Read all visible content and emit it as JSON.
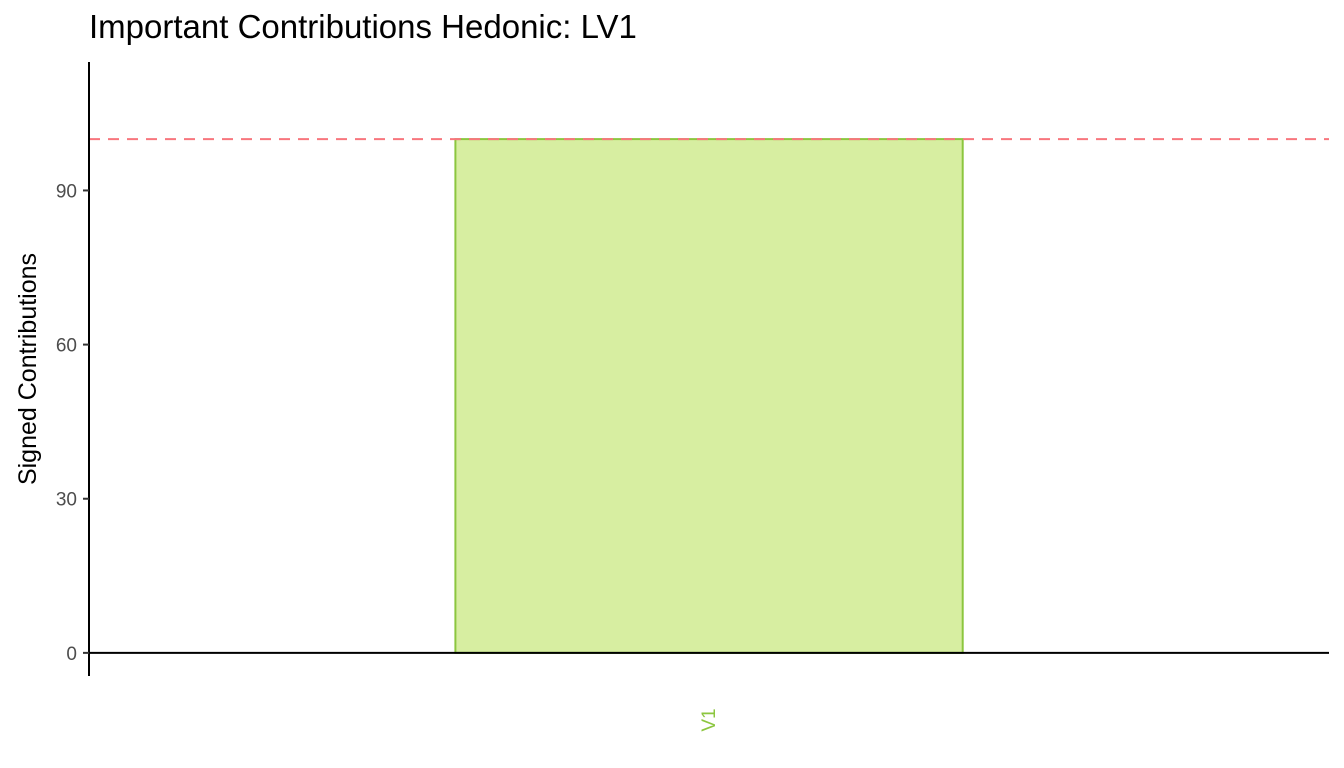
{
  "chart_data": {
    "type": "bar",
    "title": "Important Contributions Hedonic: LV1",
    "xlabel": "",
    "ylabel": "Signed Contributions",
    "categories": [
      "V1"
    ],
    "values": [
      100
    ],
    "ylim": [
      -4.5,
      115
    ],
    "yticks": [
      0,
      30,
      60,
      90
    ],
    "reference_line": {
      "y": 100,
      "style": "dashed",
      "color": "#f8767d"
    },
    "colors": {
      "bar_fill": "#d7eea1",
      "bar_stroke": "#8cc63f",
      "category_label": "#8cc63f"
    },
    "grid": false,
    "legend": "none"
  }
}
